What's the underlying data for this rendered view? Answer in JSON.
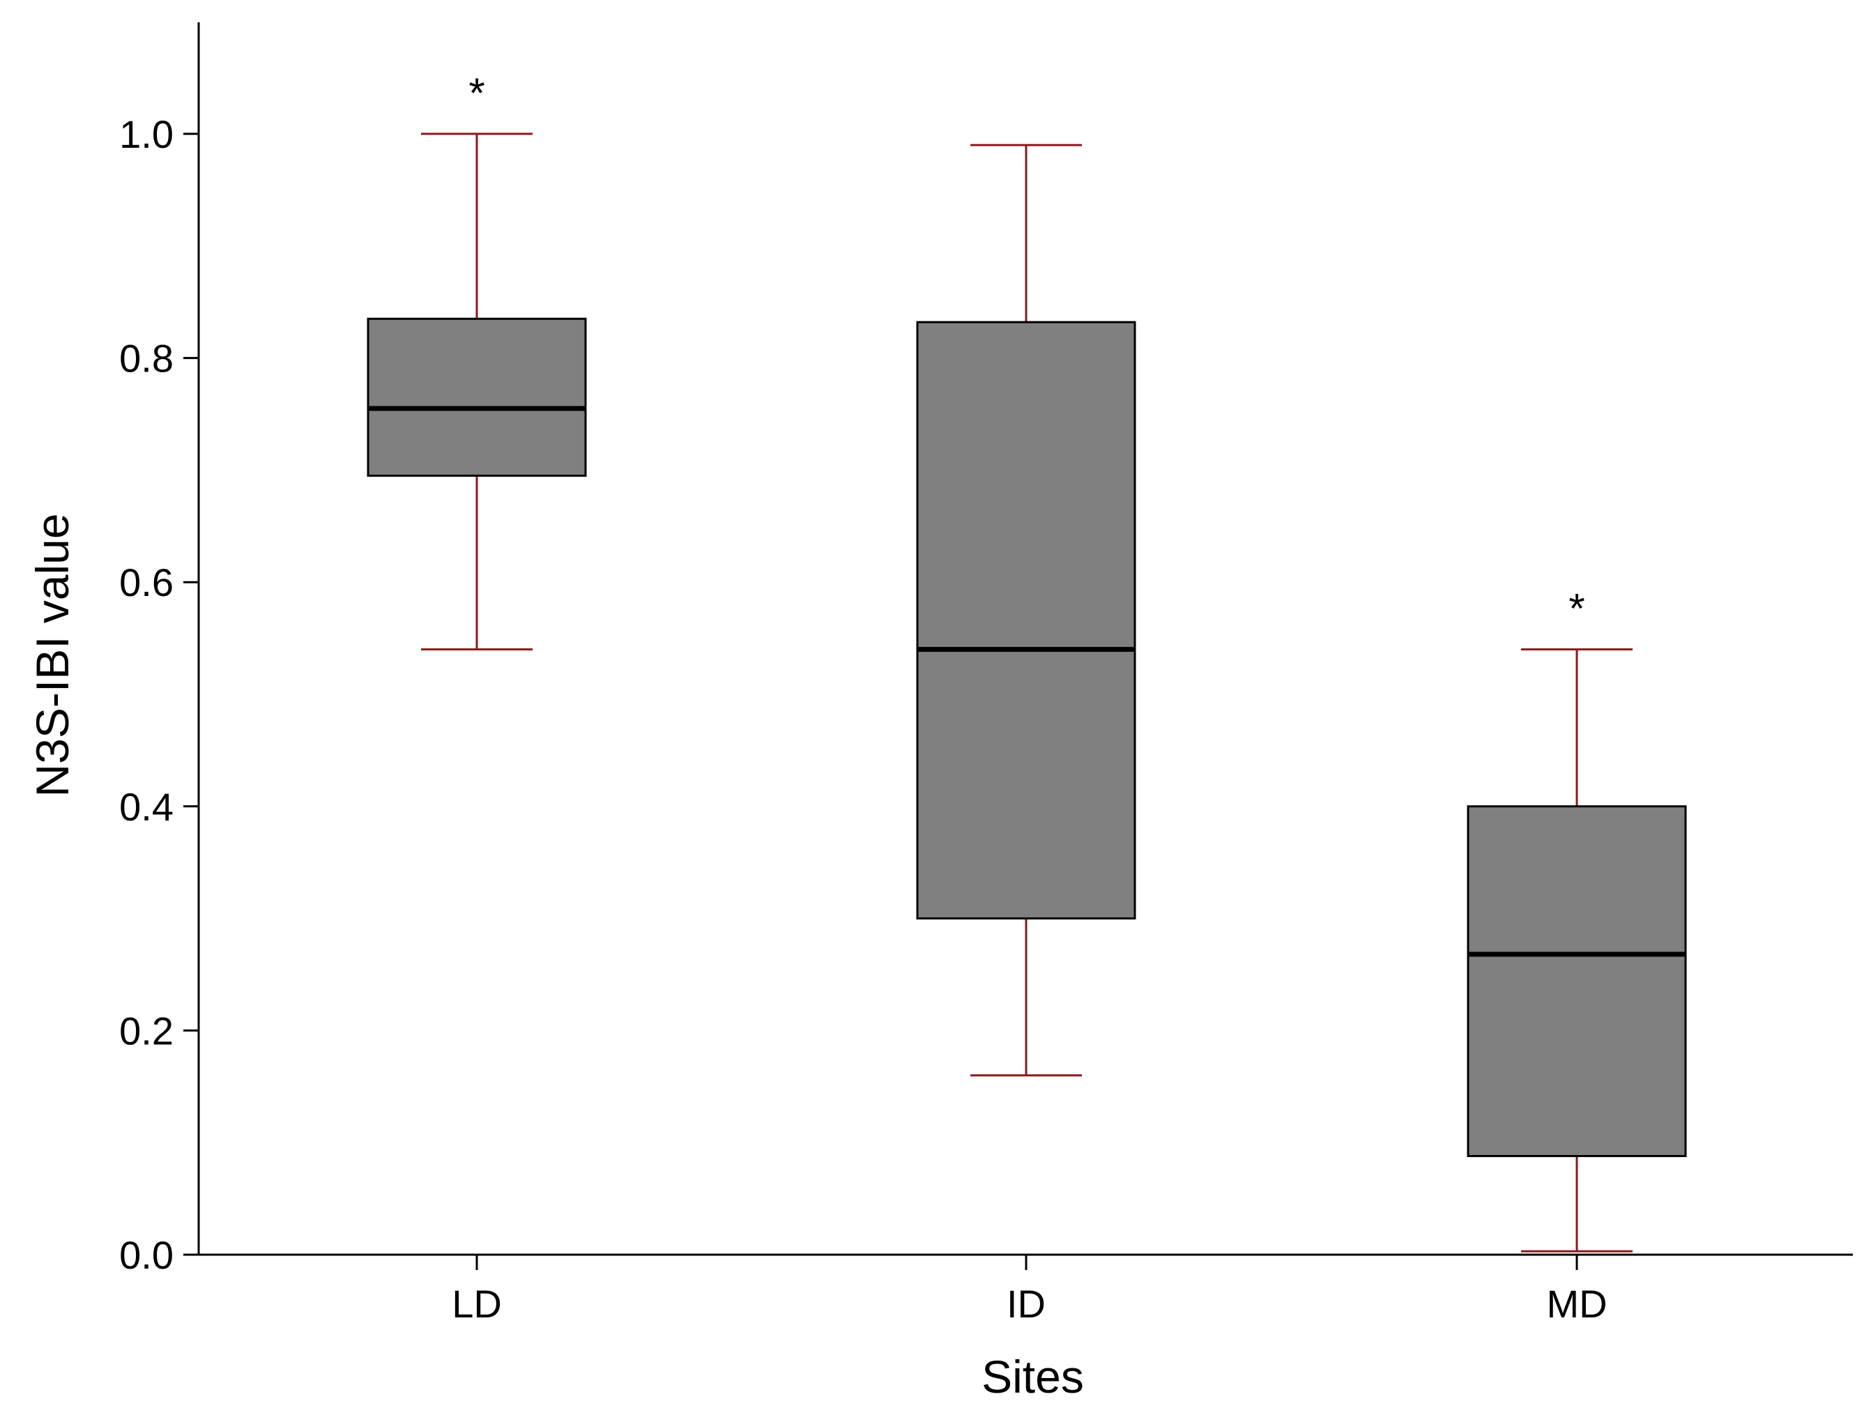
{
  "chart_data": {
    "type": "boxplot",
    "title": "",
    "xlabel": "Sites",
    "ylabel": "N3S-IBI value",
    "ylim": [
      0,
      1.1
    ],
    "y_ticks": [
      0.0,
      0.2,
      0.4,
      0.6,
      0.8,
      1.0
    ],
    "y_tick_labels": [
      "0.0",
      "0.2",
      "0.4",
      "0.6",
      "0.8",
      "1.0"
    ],
    "grid": false,
    "categories": [
      "LD",
      "ID",
      "MD"
    ],
    "boxes": [
      {
        "category": "LD",
        "whisker_low": 0.54,
        "q1": 0.695,
        "median": 0.755,
        "q3": 0.835,
        "whisker_high": 1.0,
        "annotation": "*"
      },
      {
        "category": "ID",
        "whisker_low": 0.16,
        "q1": 0.3,
        "median": 0.54,
        "q3": 0.832,
        "whisker_high": 0.99,
        "annotation": ""
      },
      {
        "category": "MD",
        "whisker_low": 0.003,
        "q1": 0.088,
        "median": 0.268,
        "q3": 0.4,
        "whisker_high": 0.54,
        "annotation": "*"
      }
    ],
    "colors": {
      "box_fill": "#808080",
      "box_stroke": "#000000",
      "median": "#000000",
      "whisker": "#8b1a1a",
      "axis": "#000000"
    }
  }
}
